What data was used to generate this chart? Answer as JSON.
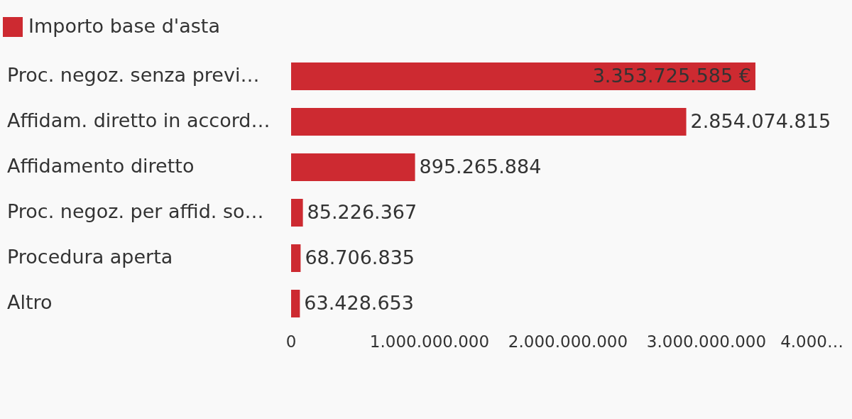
{
  "chart_data": {
    "type": "bar",
    "orientation": "horizontal",
    "categories": [
      "Proc. negoz. senza previ…",
      "Affidam. diretto in accord…",
      "Affidamento diretto",
      "Proc. negoz. per affid. so…",
      "Procedura aperta",
      "Altro"
    ],
    "series": [
      {
        "name": "Importo base d'asta",
        "color": "#cd2a31",
        "values": [
          3353725585,
          2854074815,
          895265884,
          85226367,
          68706835,
          63428653
        ],
        "value_labels": [
          "3.353.725.585 €",
          "2.854.074.815",
          "895.265.884",
          "85.226.367",
          "68.706.835",
          "63.428.653"
        ]
      }
    ],
    "xlim": [
      0,
      4000000000
    ],
    "xticks": [
      0,
      {
        "value": 1000000000,
        "label": "1.000.000.000"
      },
      {
        "value": 2000000000,
        "label": "2.000.000.000"
      },
      {
        "value": 3000000000,
        "label": "3.000.000.000"
      },
      {
        "value": 4000000000,
        "label": "4.000…"
      }
    ],
    "grid": false,
    "legend": "top left"
  }
}
